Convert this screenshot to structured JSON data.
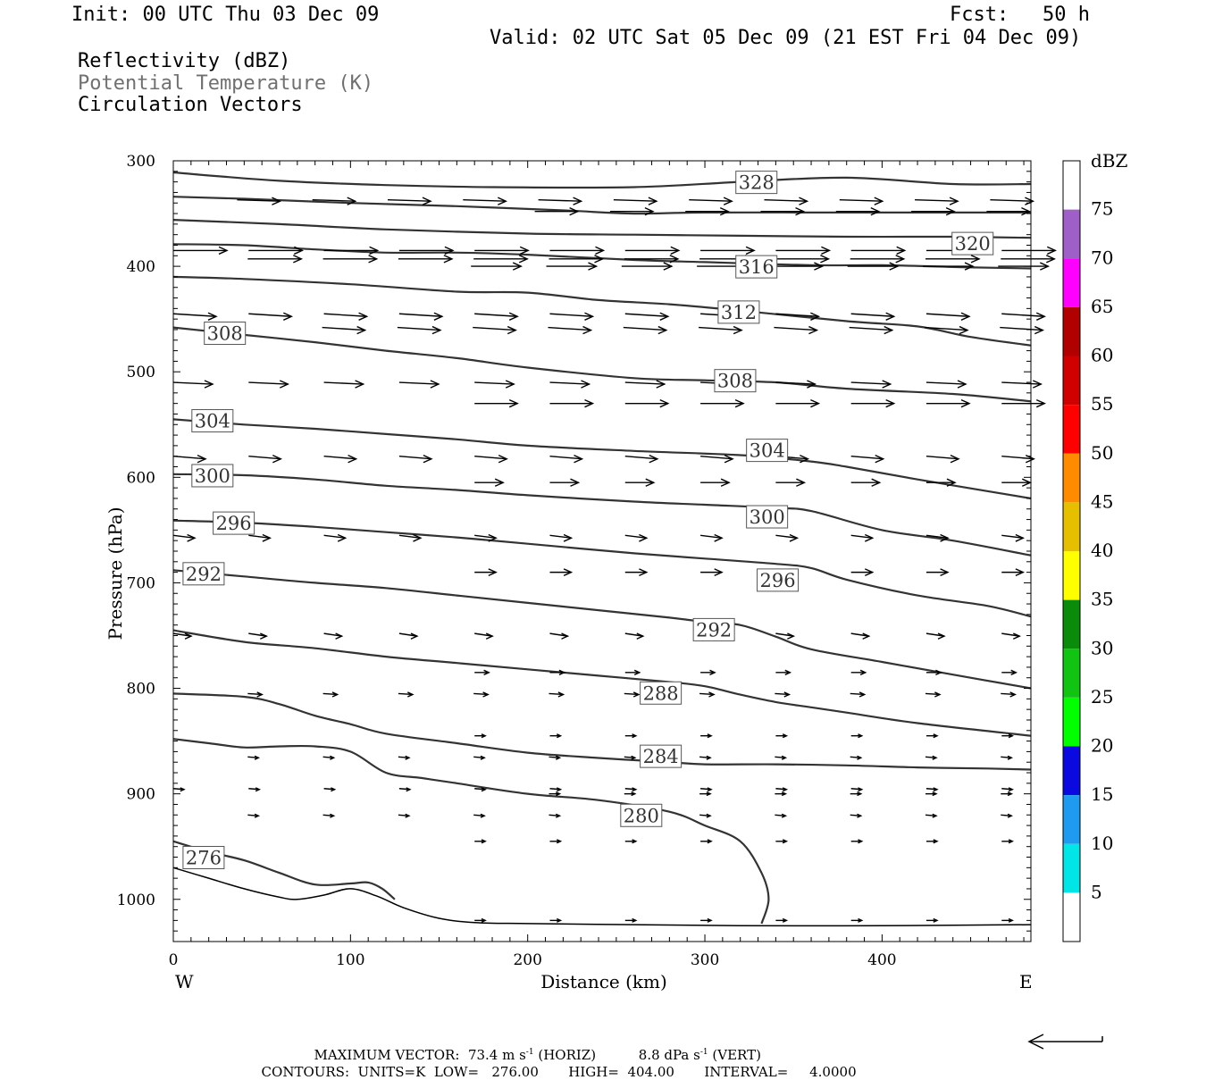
{
  "header": {
    "init": "Init: 00 UTC Thu 03 Dec 09",
    "fcst_label": "Fcst:",
    "fcst_value": "50 h",
    "valid": "Valid: 02 UTC Sat 05 Dec 09 (21 EST Fri 04 Dec 09)",
    "fields": [
      "Reflectivity (dBZ)",
      "Potential Temperature (K)",
      "Circulation Vectors"
    ]
  },
  "footer": {
    "max_vector_label": "MAXIMUM VECTOR:",
    "horiz": "73.4 m s",
    "horiz_tag": "(HORIZ)",
    "vert": "8.8 dPa s",
    "vert_tag": "(VERT)",
    "exp": "-1",
    "contours_units": "CONTOURS:  UNITS=K",
    "contours_low": "LOW=   276.00",
    "contours_high": "HIGH=  404.00",
    "contours_interval": "INTERVAL=     4.0000"
  },
  "chart_data": {
    "type": "line",
    "xlabel": "Distance (km)",
    "ylabel": "Pressure (hPa)",
    "x_ticks": [
      "0",
      "100",
      "200",
      "300",
      "400"
    ],
    "y_ticks": [
      "300",
      "400",
      "500",
      "600",
      "700",
      "800",
      "900",
      "1000"
    ],
    "xlim": [
      0,
      484
    ],
    "ylim_hpa": [
      300,
      1040
    ],
    "y_reversed": true,
    "grid": false,
    "left_end": "W",
    "right_end": "E",
    "colorbar": {
      "unit": "dBZ",
      "levels": [
        "5",
        "10",
        "15",
        "20",
        "25",
        "30",
        "35",
        "40",
        "45",
        "50",
        "55",
        "60",
        "65",
        "70",
        "75"
      ],
      "colors": [
        "#ffffff",
        "#00e5e5",
        "#1e9bf0",
        "#0a0ae0",
        "#00ff00",
        "#12c412",
        "#0a8c0a",
        "#ffff00",
        "#e6c000",
        "#ff8c00",
        "#ff0000",
        "#d00000",
        "#b00000",
        "#ff00ff",
        "#9f5fc8",
        "#ffffff"
      ]
    },
    "series": [
      {
        "name": "328",
        "x": [
          0,
          60,
          120,
          180,
          260,
          320,
          380,
          440,
          484
        ],
        "y": [
          311,
          319,
          323,
          325,
          325,
          320,
          316,
          322,
          322
        ]
      },
      {
        "name": "324",
        "x": [
          0,
          40,
          100,
          160,
          220,
          260,
          300,
          380,
          440,
          484
        ],
        "y": [
          334,
          336,
          340,
          343,
          347,
          350,
          349,
          349,
          349,
          349
        ]
      },
      {
        "name": "320",
        "x": [
          0,
          60,
          120,
          200,
          260,
          320,
          380,
          440,
          484
        ],
        "y": [
          356,
          360,
          365,
          369,
          370,
          371,
          372,
          372,
          373
        ]
      },
      {
        "name": "316",
        "x": [
          0,
          40,
          80,
          120,
          160,
          200,
          260,
          300,
          360,
          400,
          450,
          484
        ],
        "y": [
          379,
          380,
          384,
          387,
          387,
          389,
          394,
          396,
          399,
          399,
          401,
          402
        ]
      },
      {
        "name": "312",
        "x": [
          0,
          40,
          100,
          160,
          200,
          240,
          280,
          320,
          380,
          420,
          450,
          484
        ],
        "y": [
          410,
          412,
          417,
          424,
          425,
          432,
          436,
          442,
          452,
          457,
          467,
          475
        ]
      },
      {
        "name": "308",
        "x": [
          0,
          40,
          80,
          120,
          160,
          200,
          260,
          300,
          340,
          380,
          440,
          484
        ],
        "y": [
          458,
          465,
          472,
          480,
          487,
          496,
          506,
          508,
          510,
          516,
          521,
          528
        ]
      },
      {
        "name": "304",
        "x": [
          0,
          40,
          80,
          120,
          160,
          200,
          260,
          320,
          360,
          380,
          420,
          484
        ],
        "y": [
          545,
          550,
          554,
          559,
          564,
          570,
          575,
          579,
          585,
          590,
          602,
          620
        ]
      },
      {
        "name": "300",
        "x": [
          0,
          40,
          80,
          120,
          160,
          200,
          260,
          300,
          340,
          360,
          400,
          440,
          484
        ],
        "y": [
          597,
          598,
          602,
          608,
          612,
          617,
          623,
          626,
          629,
          632,
          650,
          660,
          674
        ]
      },
      {
        "name": "296",
        "x": [
          0,
          40,
          80,
          120,
          160,
          200,
          260,
          300,
          340,
          360,
          380,
          420,
          460,
          484
        ],
        "y": [
          641,
          643,
          647,
          652,
          657,
          663,
          672,
          677,
          682,
          686,
          697,
          712,
          722,
          732
        ]
      },
      {
        "name": "292",
        "x": [
          0,
          40,
          80,
          120,
          160,
          200,
          240,
          280,
          300,
          320,
          340,
          360,
          400,
          440,
          484
        ],
        "y": [
          688,
          694,
          700,
          705,
          712,
          719,
          726,
          733,
          737,
          740,
          751,
          763,
          775,
          787,
          800
        ]
      },
      {
        "name": "288",
        "x": [
          0,
          40,
          80,
          120,
          160,
          200,
          240,
          280,
          300,
          320,
          340,
          360,
          380,
          420,
          484
        ],
        "y": [
          745,
          756,
          762,
          770,
          776,
          782,
          788,
          794,
          798,
          806,
          813,
          818,
          823,
          833,
          845
        ]
      },
      {
        "name": "284",
        "x": [
          0,
          40,
          60,
          80,
          100,
          120,
          160,
          200,
          240,
          280,
          300,
          340,
          380,
          420,
          460,
          484
        ],
        "y": [
          805,
          808,
          815,
          826,
          834,
          843,
          852,
          861,
          866,
          870,
          872,
          872,
          873,
          875,
          876,
          877
        ]
      },
      {
        "name": "280",
        "x": [
          0,
          20,
          40,
          60,
          80,
          100,
          120,
          140,
          160,
          200,
          240,
          280,
          300,
          320,
          332,
          336,
          332
        ],
        "y": [
          848,
          852,
          856,
          855,
          855,
          860,
          880,
          885,
          890,
          900,
          906,
          917,
          930,
          945,
          975,
          1000,
          1023
        ]
      },
      {
        "name": "276",
        "x": [
          0,
          20,
          40,
          60,
          80,
          100,
          110,
          118,
          125
        ],
        "y": [
          945,
          955,
          963,
          975,
          986,
          985,
          984,
          990,
          1000
        ]
      },
      {
        "name": "ground",
        "x": [
          0,
          20,
          40,
          60,
          70,
          85,
          100,
          115,
          130,
          150,
          170,
          200,
          260,
          320,
          400,
          484
        ],
        "y": [
          970,
          980,
          990,
          998,
          1000,
          996,
          990,
          997,
          1008,
          1018,
          1022,
          1023,
          1024,
          1025,
          1025,
          1024
        ]
      }
    ],
    "contour_labels": [
      {
        "text": "328",
        "x": 318,
        "y": 320
      },
      {
        "text": "320",
        "x": 440,
        "y": 378
      },
      {
        "text": "316",
        "x": 318,
        "y": 400
      },
      {
        "text": "312",
        "x": 308,
        "y": 443
      },
      {
        "text": "308",
        "x": 18,
        "y": 463
      },
      {
        "text": "308",
        "x": 306,
        "y": 508
      },
      {
        "text": "304",
        "x": 11,
        "y": 546
      },
      {
        "text": "304",
        "x": 324,
        "y": 574
      },
      {
        "text": "300",
        "x": 11,
        "y": 598
      },
      {
        "text": "300",
        "x": 324,
        "y": 637
      },
      {
        "text": "296",
        "x": 23,
        "y": 643
      },
      {
        "text": "296",
        "x": 330,
        "y": 697
      },
      {
        "text": "292",
        "x": 6,
        "y": 691
      },
      {
        "text": "292",
        "x": 294,
        "y": 744
      },
      {
        "text": "288",
        "x": 264,
        "y": 804
      },
      {
        "text": "284",
        "x": 264,
        "y": 864
      },
      {
        "text": "280",
        "x": 253,
        "y": 920
      },
      {
        "text": "276",
        "x": 6,
        "y": 960
      }
    ],
    "vector_rows": [
      {
        "p": 337,
        "x0": 36,
        "dx": 42.5,
        "u": 12,
        "w": 1.5
      },
      {
        "p": 348,
        "x0": 204,
        "dx": 42.5,
        "u": 12,
        "w": 0
      },
      {
        "p": 385,
        "x0": 0,
        "dx": 42.5,
        "u": 15,
        "w": 0
      },
      {
        "p": 393,
        "x0": 42,
        "dx": 42.5,
        "u": 15,
        "w": 0
      },
      {
        "p": 400,
        "x0": 168,
        "dx": 42.5,
        "u": 14,
        "w": 0
      },
      {
        "p": 445,
        "x0": 0,
        "dx": 42.5,
        "u": 12,
        "w": 3
      },
      {
        "p": 458,
        "x0": 84,
        "dx": 42.5,
        "u": 12,
        "w": 3
      },
      {
        "p": 510,
        "x0": 0,
        "dx": 42.5,
        "u": 11,
        "w": 2
      },
      {
        "p": 530,
        "x0": 170,
        "dx": 42.5,
        "u": 12,
        "w": 0
      },
      {
        "p": 580,
        "x0": 0,
        "dx": 42.5,
        "u": 9,
        "w": 3
      },
      {
        "p": 605,
        "x0": 170,
        "dx": 42.5,
        "u": 8,
        "w": 0
      },
      {
        "p": 655,
        "x0": 0,
        "dx": 42.5,
        "u": 6,
        "w": 3
      },
      {
        "p": 690,
        "x0": 170,
        "dx": 42.5,
        "u": 6,
        "w": 0
      },
      {
        "p": 748,
        "x0": 0,
        "dx": 42.5,
        "u": 5,
        "w": 3
      },
      {
        "p": 785,
        "x0": 170,
        "dx": 42.5,
        "u": 4,
        "w": 0
      },
      {
        "p": 805,
        "x0": 42,
        "dx": 42.5,
        "u": 4,
        "w": 1
      },
      {
        "p": 845,
        "x0": 170,
        "dx": 42.5,
        "u": 3,
        "w": 0
      },
      {
        "p": 865,
        "x0": 42,
        "dx": 42.5,
        "u": 3,
        "w": 1
      },
      {
        "p": 895,
        "x0": 0,
        "dx": 42.5,
        "u": 3,
        "w": 1
      },
      {
        "p": 900,
        "x0": 212,
        "dx": 42.5,
        "u": 3,
        "w": 0
      },
      {
        "p": 920,
        "x0": 42,
        "dx": 42.5,
        "u": 3,
        "w": 1
      },
      {
        "p": 945,
        "x0": 170,
        "dx": 42.5,
        "u": 3,
        "w": 0
      },
      {
        "p": 1020,
        "x0": 170,
        "dx": 42.5,
        "u": 3,
        "w": 0
      }
    ]
  }
}
